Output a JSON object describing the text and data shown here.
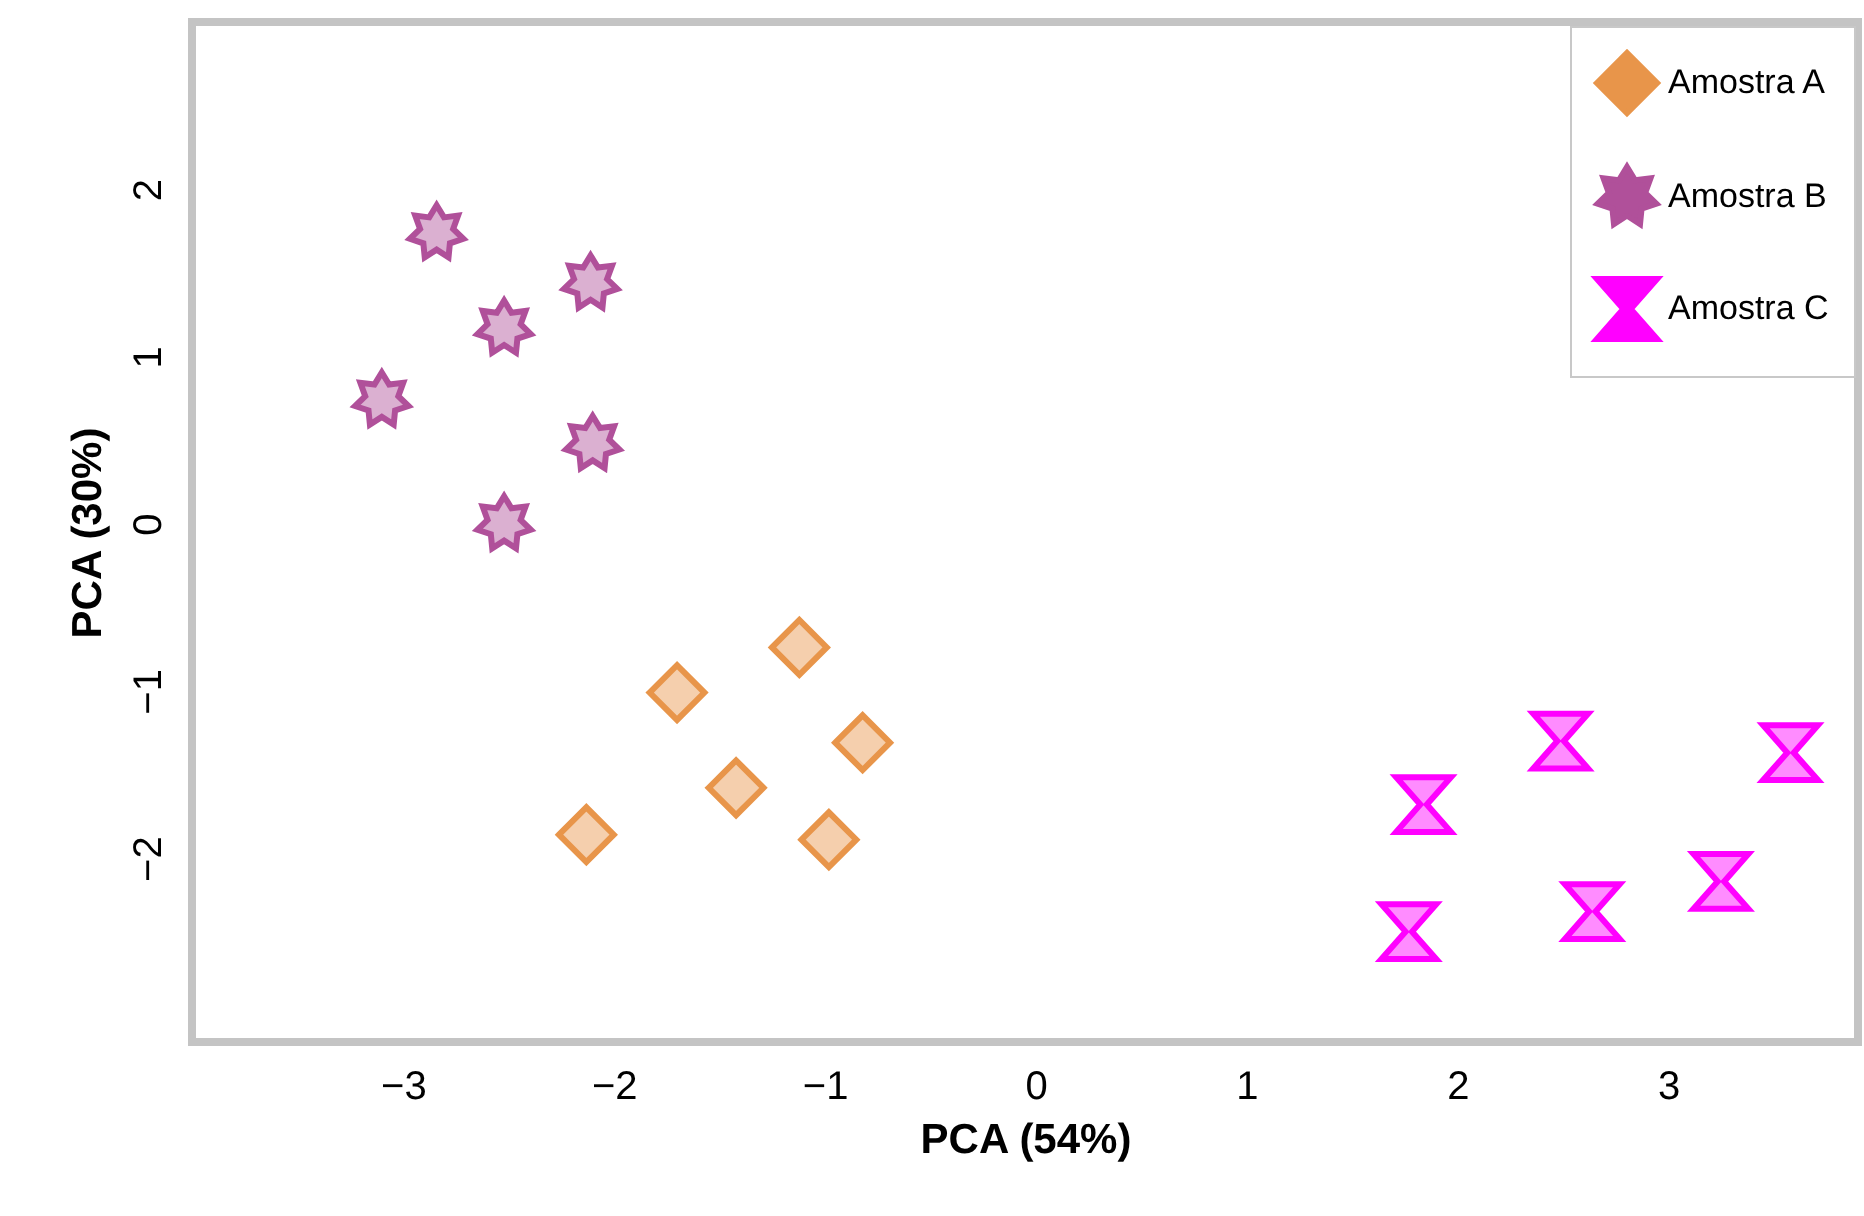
{
  "chart_data": {
    "type": "scatter",
    "xlabel": "PCA (54%)",
    "ylabel": "PCA (30%)",
    "xlim": [
      -4,
      3.9
    ],
    "ylim": [
      -3.1,
      3
    ],
    "xticks": [
      -3,
      -2,
      -1,
      0,
      1,
      2,
      3
    ],
    "yticks": [
      -2,
      -1,
      0,
      1,
      2
    ],
    "legend": "top right",
    "series": [
      {
        "name": "Amostra A",
        "color": "#e8954a",
        "marker": "diamond",
        "x": [
          -2.13,
          -1.7,
          -1.42,
          -1.12,
          -0.98,
          -0.82
        ],
        "values": [
          -1.86,
          -1.01,
          -1.58,
          -0.74,
          -1.89,
          -1.31
        ]
      },
      {
        "name": "Amostra B",
        "color": "#b0509a",
        "marker": "star",
        "x": [
          -2.84,
          -2.11,
          -2.52,
          -3.1,
          -2.1,
          -2.52
        ],
        "values": [
          1.74,
          1.44,
          1.17,
          0.74,
          0.48,
          0
        ]
      },
      {
        "name": "Amostra C",
        "color": "#ff00ff",
        "x": [
          1.84,
          2.49,
          3.58,
          1.77,
          2.64,
          3.25
        ],
        "values": [
          -1.68,
          -1.3,
          -1.37,
          -2.44,
          -2.32,
          -2.14
        ]
      }
    ]
  }
}
